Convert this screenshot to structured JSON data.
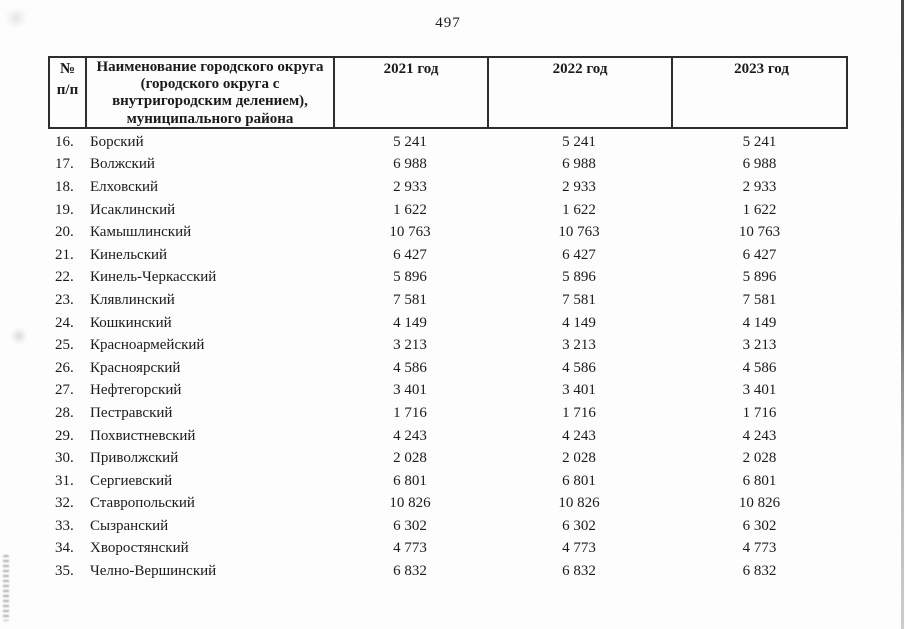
{
  "page": {
    "number": "497"
  },
  "table": {
    "columns": [
      {
        "label": "№\nп/п"
      },
      {
        "label": "Наименование городского округа (городского округа с внутригородским делением), муниципального района"
      },
      {
        "label": "2021 год"
      },
      {
        "label": "2022 год"
      },
      {
        "label": "2023 год"
      }
    ],
    "rows": [
      {
        "num": "16.",
        "name": "Борский",
        "y2021": "5 241",
        "y2022": "5 241",
        "y2023": "5 241"
      },
      {
        "num": "17.",
        "name": "Волжский",
        "y2021": "6 988",
        "y2022": "6 988",
        "y2023": "6 988"
      },
      {
        "num": "18.",
        "name": "Елховский",
        "y2021": "2 933",
        "y2022": "2 933",
        "y2023": "2 933"
      },
      {
        "num": "19.",
        "name": "Исаклинский",
        "y2021": "1 622",
        "y2022": "1 622",
        "y2023": "1 622"
      },
      {
        "num": "20.",
        "name": "Камышлинский",
        "y2021": "10 763",
        "y2022": "10 763",
        "y2023": "10 763"
      },
      {
        "num": "21.",
        "name": "Кинельский",
        "y2021": "6 427",
        "y2022": "6 427",
        "y2023": "6 427"
      },
      {
        "num": "22.",
        "name": "Кинель-Черкасский",
        "y2021": "5 896",
        "y2022": "5 896",
        "y2023": "5 896"
      },
      {
        "num": "23.",
        "name": "Клявлинский",
        "y2021": "7 581",
        "y2022": "7 581",
        "y2023": "7 581"
      },
      {
        "num": "24.",
        "name": "Кошкинский",
        "y2021": "4 149",
        "y2022": "4 149",
        "y2023": "4 149"
      },
      {
        "num": "25.",
        "name": "Красноармейский",
        "y2021": "3 213",
        "y2022": "3 213",
        "y2023": "3 213"
      },
      {
        "num": "26.",
        "name": "Красноярский",
        "y2021": "4 586",
        "y2022": "4 586",
        "y2023": "4 586"
      },
      {
        "num": "27.",
        "name": "Нефтегорский",
        "y2021": "3 401",
        "y2022": "3 401",
        "y2023": "3 401"
      },
      {
        "num": "28.",
        "name": "Пестравский",
        "y2021": "1 716",
        "y2022": "1 716",
        "y2023": "1 716"
      },
      {
        "num": "29.",
        "name": "Похвистневский",
        "y2021": "4 243",
        "y2022": "4 243",
        "y2023": "4 243"
      },
      {
        "num": "30.",
        "name": "Приволжский",
        "y2021": "2 028",
        "y2022": "2 028",
        "y2023": "2 028"
      },
      {
        "num": "31.",
        "name": "Сергиевский",
        "y2021": "6 801",
        "y2022": "6 801",
        "y2023": "6 801"
      },
      {
        "num": "32.",
        "name": "Ставропольский",
        "y2021": "10 826",
        "y2022": "10 826",
        "y2023": "10 826"
      },
      {
        "num": "33.",
        "name": "Сызранский",
        "y2021": "6 302",
        "y2022": "6 302",
        "y2023": "6 302"
      },
      {
        "num": "34.",
        "name": "Хворостянский",
        "y2021": "4 773",
        "y2022": "4 773",
        "y2023": "4 773"
      },
      {
        "num": "35.",
        "name": "Челно-Вершинский",
        "y2021": "6 832",
        "y2022": "6 832",
        "y2023": "6 832"
      }
    ]
  }
}
